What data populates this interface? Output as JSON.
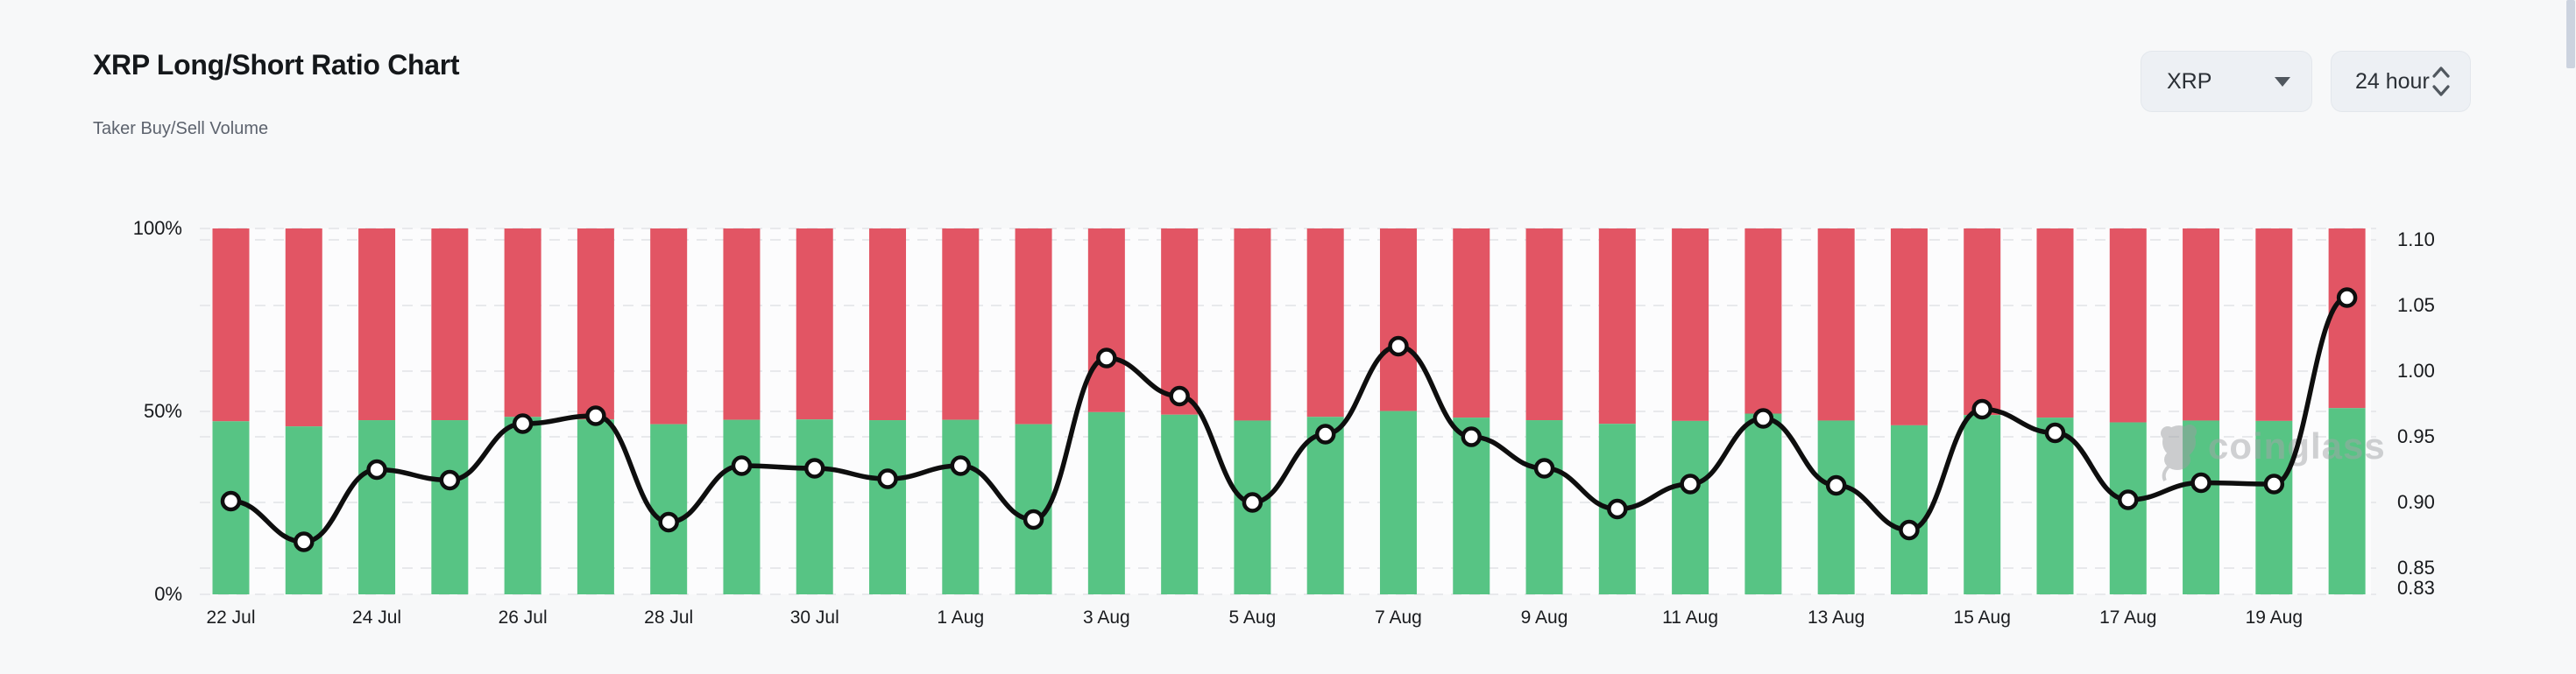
{
  "header": {
    "title": "XRP Long/Short Ratio Chart",
    "subtitle": "Taker Buy/Sell Volume"
  },
  "controls": {
    "symbol_select": {
      "value": "XRP"
    },
    "interval_select": {
      "value": "24 hour"
    }
  },
  "watermark": {
    "text": "coinglass"
  },
  "chart_data": {
    "type": "bar",
    "subtype": "stacked-percent-bars-with-ratio-line",
    "categories": [
      "22 Jul",
      "23 Jul",
      "24 Jul",
      "25 Jul",
      "26 Jul",
      "27 Jul",
      "28 Jul",
      "29 Jul",
      "30 Jul",
      "31 Jul",
      "1 Aug",
      "2 Aug",
      "3 Aug",
      "4 Aug",
      "5 Aug",
      "6 Aug",
      "7 Aug",
      "8 Aug",
      "9 Aug",
      "10 Aug",
      "11 Aug",
      "12 Aug",
      "13 Aug",
      "14 Aug",
      "15 Aug",
      "16 Aug",
      "17 Aug",
      "18 Aug",
      "19 Aug",
      "20 Aug"
    ],
    "series": [
      {
        "name": "Long %",
        "type": "bar",
        "stack": "pct",
        "color": "#57c484",
        "values": [
          47.3,
          45.9,
          47.6,
          47.6,
          48.5,
          47.8,
          46.5,
          47.7,
          47.8,
          47.6,
          47.7,
          46.5,
          49.8,
          49.1,
          47.5,
          48.5,
          50.1,
          48.3,
          47.6,
          46.6,
          47.4,
          49.4,
          47.5,
          46.2,
          49.0,
          48.3,
          47.0,
          47.5,
          47.4,
          50.9
        ]
      },
      {
        "name": "Short %",
        "type": "bar",
        "stack": "pct",
        "color": "#e25564",
        "values": [
          52.7,
          54.1,
          52.4,
          52.4,
          51.5,
          52.2,
          53.5,
          52.3,
          52.2,
          52.4,
          52.3,
          53.5,
          50.2,
          50.9,
          52.5,
          51.5,
          49.9,
          51.7,
          52.4,
          53.4,
          52.6,
          50.6,
          52.5,
          53.8,
          51.0,
          51.7,
          53.0,
          52.5,
          52.6,
          49.1
        ]
      },
      {
        "name": "Long/Short Ratio",
        "type": "line",
        "color": "#0e0e0e",
        "axis": "right",
        "values": [
          0.901,
          0.87,
          0.925,
          0.917,
          0.96,
          0.966,
          0.885,
          0.928,
          0.926,
          0.918,
          0.928,
          0.887,
          1.01,
          0.981,
          0.9,
          0.952,
          1.019,
          0.95,
          0.926,
          0.895,
          0.914,
          0.964,
          0.913,
          0.879,
          0.971,
          0.953,
          0.902,
          0.915,
          0.914,
          1.056
        ]
      }
    ],
    "left_axis": {
      "ticks": [
        "0%",
        "50%",
        "100%"
      ],
      "tick_values": [
        0,
        50,
        100
      ],
      "range": [
        0,
        100
      ]
    },
    "right_axis": {
      "ticks": [
        "0.83",
        "0.85",
        "0.90",
        "0.95",
        "1.00",
        "1.05",
        "1.10"
      ],
      "tick_values": [
        0.83,
        0.85,
        0.9,
        0.95,
        1.0,
        1.05,
        1.1
      ],
      "range": [
        0.83,
        1.109
      ]
    },
    "x_axis": {
      "label_every": 2
    },
    "grid": "dashed-horizontal",
    "legend": "none"
  }
}
